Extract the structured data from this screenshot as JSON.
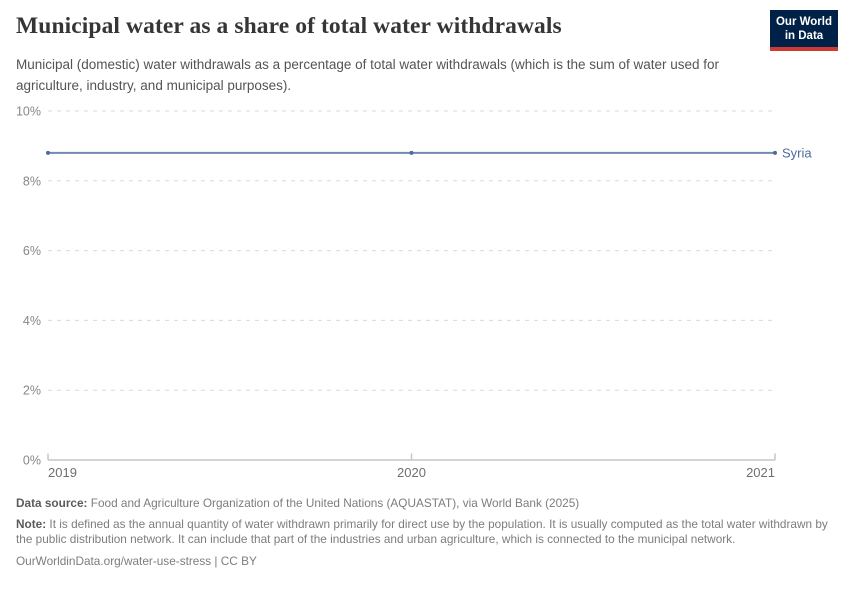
{
  "header": {
    "title": "Municipal water as a share of total water withdrawals",
    "subtitle": "Municipal (domestic) water withdrawals as a percentage of total water withdrawals (which is the sum of water used for agriculture, industry, and municipal purposes).",
    "logo": {
      "line1": "Our World",
      "line2": "in Data",
      "bg_color": "#002147",
      "stripe_color": "#cd3a34"
    }
  },
  "chart_data": {
    "type": "line",
    "title": "Municipal water as a share of total water withdrawals",
    "x": [
      2019,
      2020,
      2021
    ],
    "series": [
      {
        "name": "Syria",
        "values": [
          8.8,
          8.8,
          8.8
        ],
        "color": "#4c6a9c",
        "line_color": "#7389ae"
      }
    ],
    "ylim": [
      0,
      10
    ],
    "yticks": [
      {
        "value": 0,
        "label": "0%"
      },
      {
        "value": 2,
        "label": "2%"
      },
      {
        "value": 4,
        "label": "4%"
      },
      {
        "value": 6,
        "label": "6%"
      },
      {
        "value": 8,
        "label": "8%"
      },
      {
        "value": 10,
        "label": "10%"
      }
    ],
    "xticks": [
      {
        "value": 2019,
        "label": "2019"
      },
      {
        "value": 2020,
        "label": "2020"
      },
      {
        "value": 2021,
        "label": "2021"
      }
    ],
    "grid": true,
    "grid_color": "#dadada",
    "axis_color": "#c6c6c6",
    "ytick_label_color": "#878787",
    "xtick_label_color": "#6f6f6f",
    "legend_position": "line-end"
  },
  "footer": {
    "datasource_label": "Data source:",
    "datasource_text": " Food and Agriculture Organization of the United Nations (AQUASTAT), via World Bank (2025)",
    "note_label": "Note:",
    "note_text": " It is defined as the annual quantity of water withdrawn primarily for direct use by the population. It is usually computed as the total water withdrawn by the public distribution network. It can include that part of the industries and urban agriculture, which is connected to the municipal network.",
    "link": "OurWorldinData.org/water-use-stress | CC BY"
  }
}
